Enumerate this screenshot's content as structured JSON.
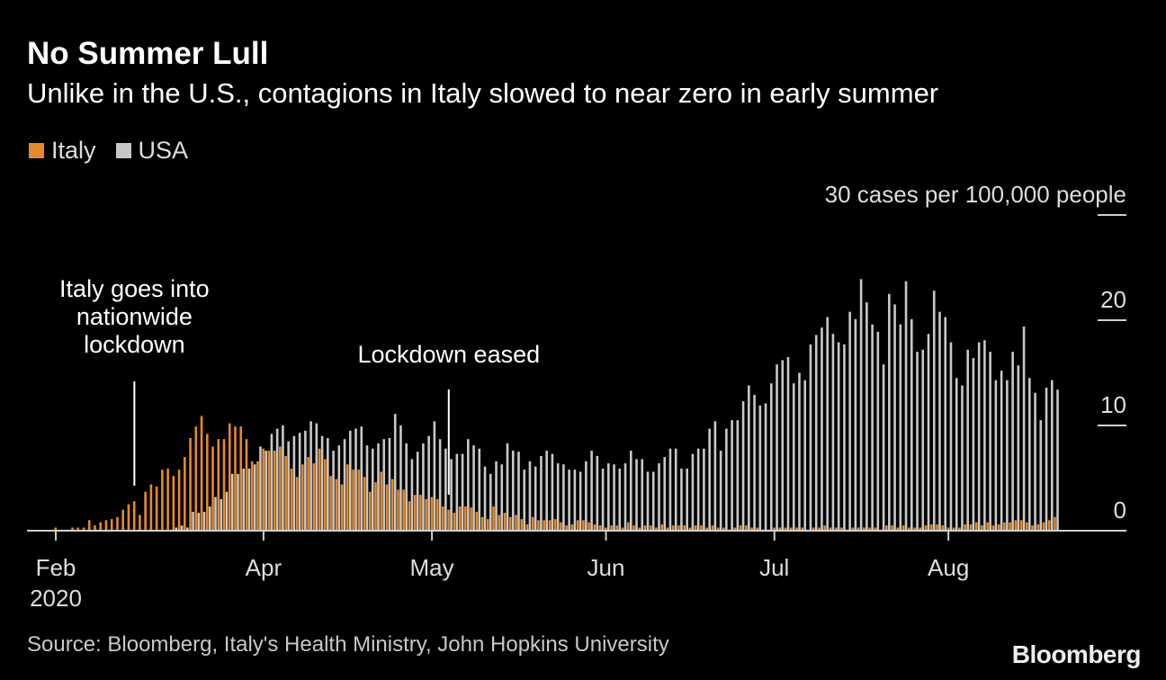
{
  "header": {
    "title": "No Summer Lull",
    "subtitle": "Unlike in the U.S., contagions in Italy slowed to near zero in early summer"
  },
  "footer": {
    "source": "Source: Bloomberg, Italy's Health Ministry, John Hopkins University",
    "logo": "Bloomberg"
  },
  "chart_data": {
    "type": "bar",
    "ylabel": "30 cases per 100,000 people",
    "ylim": [
      0,
      30
    ],
    "y_ticks": [
      {
        "value": 0,
        "label": "0"
      },
      {
        "value": 10,
        "label": "10"
      },
      {
        "value": 20,
        "label": "20"
      },
      {
        "value": 30,
        "label": "30 cases per 100,000 people"
      }
    ],
    "grid": false,
    "legend_position": "top-left",
    "x_start": "2020-02-24",
    "x_ticks": [
      {
        "date": "2020-02-24",
        "label": "Feb",
        "sublabel": "2020"
      },
      {
        "date": "2020-04-01",
        "label": "Apr"
      },
      {
        "date": "2020-05-01",
        "label": "May"
      },
      {
        "date": "2020-06-01",
        "label": "Jun"
      },
      {
        "date": "2020-07-01",
        "label": "Jul"
      },
      {
        "date": "2020-08-01",
        "label": "Aug"
      }
    ],
    "annotations": [
      {
        "date": "2020-03-09",
        "lines": [
          "Italy goes into",
          "nationwide",
          "lockdown"
        ]
      },
      {
        "date": "2020-05-04",
        "lines": [
          "Lockdown eased"
        ]
      }
    ],
    "series": [
      {
        "name": "Italy",
        "color": "#e58a2c",
        "values": [
          0.3,
          0.1,
          0.1,
          0.3,
          0.3,
          0.3,
          1.0,
          0.5,
          0.8,
          1.0,
          1.1,
          1.3,
          2.0,
          2.5,
          2.8,
          1.5,
          3.7,
          4.4,
          4.2,
          5.8,
          5.9,
          5.2,
          5.8,
          7.0,
          8.8,
          9.9,
          10.9,
          9.2,
          8.0,
          8.7,
          8.7,
          10.2,
          9.9,
          9.9,
          8.7,
          6.6,
          6.6,
          7.8,
          7.6,
          7.6,
          8.0,
          7.1,
          5.9,
          5.1,
          6.3,
          7.0,
          6.4,
          7.8,
          6.8,
          5.2,
          4.9,
          4.4,
          6.3,
          5.8,
          5.8,
          5.1,
          3.7,
          4.6,
          5.6,
          4.4,
          4.9,
          3.9,
          3.9,
          2.8,
          3.4,
          3.4,
          3.0,
          3.2,
          3.0,
          2.3,
          2.0,
          1.7,
          2.3,
          2.3,
          2.2,
          1.8,
          1.3,
          1.1,
          2.3,
          1.5,
          1.7,
          1.3,
          1.5,
          1.1,
          0.6,
          1.3,
          1.0,
          1.0,
          1.0,
          1.1,
          0.8,
          0.5,
          0.6,
          1.0,
          1.0,
          0.8,
          0.6,
          0.5,
          0.3,
          0.5,
          0.5,
          0.3,
          0.8,
          0.5,
          0.3,
          0.5,
          0.5,
          0.3,
          0.6,
          0.3,
          0.5,
          0.5,
          0.5,
          0.3,
          0.5,
          0.5,
          0.3,
          0.5,
          0.3,
          0.3,
          0.1,
          0.3,
          0.5,
          0.5,
          0.3,
          0.3,
          0.1,
          0.1,
          0.3,
          0.3,
          0.3,
          0.3,
          0.3,
          0.3,
          0.1,
          0.3,
          0.3,
          0.5,
          0.3,
          0.3,
          0.3,
          0.1,
          0.3,
          0.3,
          0.3,
          0.3,
          0.3,
          0.1,
          0.5,
          0.5,
          0.3,
          0.5,
          0.3,
          0.3,
          0.3,
          0.5,
          0.6,
          0.6,
          0.5,
          0.3,
          0.3,
          0.3,
          0.6,
          0.6,
          0.8,
          0.5,
          0.8,
          0.5,
          0.6,
          0.8,
          0.8,
          1.0,
          1.0,
          0.8,
          0.5,
          0.6,
          0.8,
          1.0,
          1.3
        ]
      },
      {
        "name": "USA",
        "color": "#c8c8c8",
        "values": [
          0,
          0,
          0,
          0,
          0,
          0,
          0,
          0,
          0,
          0,
          0,
          0,
          0,
          0,
          0,
          0,
          0,
          0,
          0,
          0,
          0,
          0.3,
          0.5,
          0.3,
          1.8,
          1.7,
          1.8,
          2.3,
          3.2,
          3.0,
          3.7,
          5.4,
          5.4,
          5.9,
          5.9,
          6.3,
          8.0,
          7.6,
          9.2,
          9.7,
          10.0,
          8.5,
          9.0,
          9.3,
          9.5,
          10.4,
          10.2,
          9.0,
          8.8,
          7.6,
          8.1,
          8.7,
          9.5,
          9.7,
          9.9,
          8.1,
          7.8,
          8.3,
          8.7,
          8.8,
          11.1,
          10.0,
          8.3,
          6.8,
          7.5,
          8.3,
          9.0,
          10.4,
          8.7,
          7.8,
          6.8,
          7.3,
          7.3,
          8.7,
          8.1,
          7.8,
          6.1,
          5.4,
          6.6,
          6.3,
          8.3,
          7.6,
          7.5,
          5.8,
          6.6,
          6.1,
          7.1,
          7.6,
          7.3,
          6.4,
          6.3,
          5.8,
          5.8,
          5.6,
          6.6,
          7.6,
          7.1,
          5.9,
          6.4,
          6.3,
          5.9,
          6.4,
          7.6,
          6.8,
          6.8,
          5.6,
          5.6,
          6.4,
          7.0,
          7.8,
          7.8,
          5.9,
          5.9,
          7.3,
          7.8,
          7.8,
          9.7,
          10.4,
          7.6,
          9.7,
          10.5,
          10.5,
          12.3,
          13.8,
          12.9,
          11.9,
          12.1,
          14.0,
          15.8,
          16.2,
          16.5,
          14.0,
          15.0,
          14.3,
          17.7,
          18.6,
          19.3,
          20.3,
          18.7,
          17.9,
          17.7,
          20.8,
          20.1,
          23.9,
          21.7,
          19.6,
          18.9,
          15.8,
          22.5,
          21.5,
          19.6,
          23.7,
          20.1,
          17.0,
          17.2,
          18.7,
          22.8,
          20.8,
          20.3,
          17.9,
          14.5,
          13.8,
          17.2,
          16.4,
          17.9,
          18.1,
          17.0,
          14.3,
          15.2,
          14.3,
          17.0,
          15.7,
          19.4,
          14.5,
          13.1,
          10.5,
          13.6,
          14.3,
          13.4
        ]
      }
    ]
  }
}
